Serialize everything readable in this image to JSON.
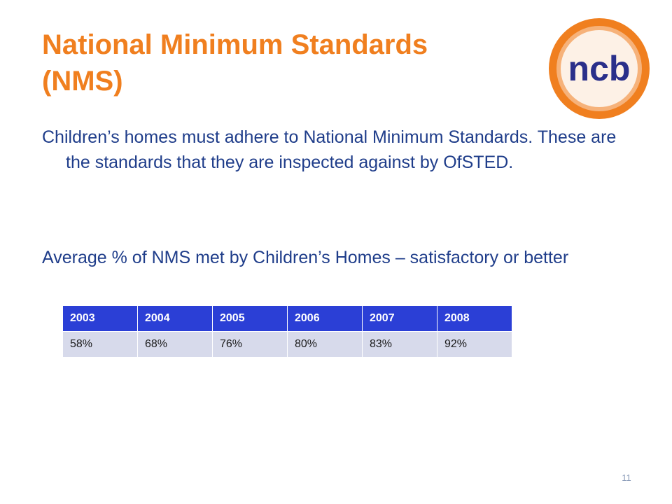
{
  "title": {
    "line1": "National Minimum Standards",
    "line2": "(NMS)"
  },
  "logo": {
    "text": "ncb",
    "ring_color": "#f07f1f",
    "text_color": "#2a2f8a"
  },
  "paragraphs": {
    "p1": "Children’s homes must adhere to National Minimum Standards.  These are the standards that they are inspected against by OfSTED.",
    "p2": "Average  % of NMS met by Children’s Homes – satisfactory or better"
  },
  "table": {
    "headers": [
      "2003",
      "2004",
      "2005",
      "2006",
      "2007",
      "2008"
    ],
    "values": [
      "58%",
      "68%",
      "76%",
      "80%",
      "83%",
      "92%"
    ]
  },
  "chart_data": {
    "type": "table",
    "categories": [
      "2003",
      "2004",
      "2005",
      "2006",
      "2007",
      "2008"
    ],
    "values": [
      58,
      68,
      76,
      80,
      83,
      92
    ]
  },
  "slide_number": "11",
  "colors": {
    "title": "#f07f1f",
    "body_text": "#1f3d8a",
    "table_header_bg": "#2b3fd6",
    "table_cell_bg": "#d7daeb"
  }
}
